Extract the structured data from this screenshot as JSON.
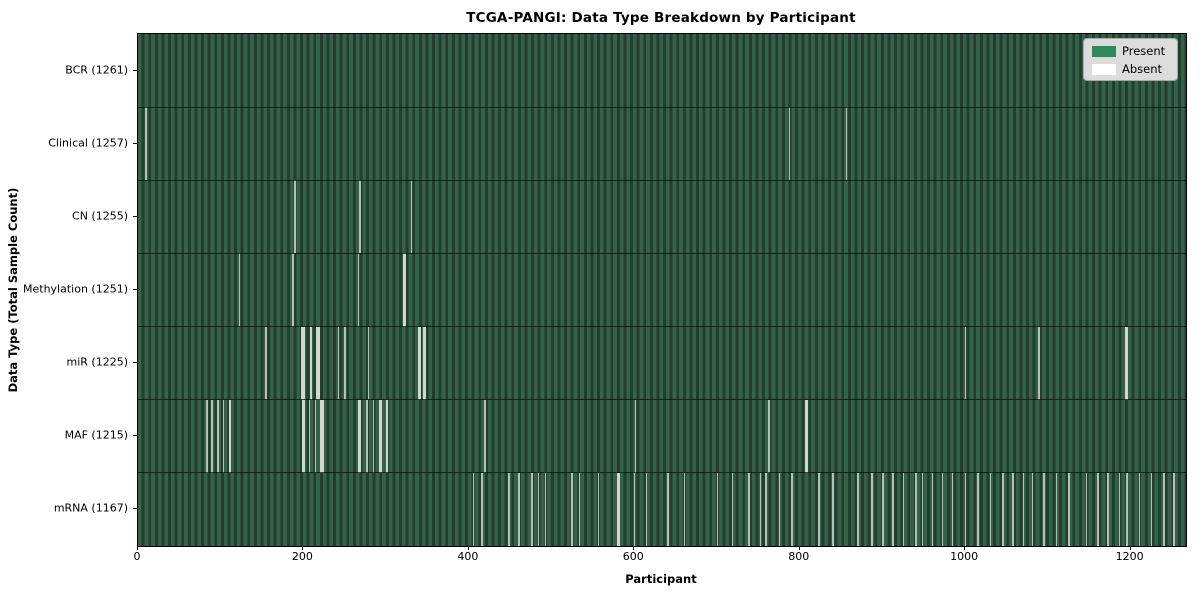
{
  "figure": {
    "title": "TCGA-PANGI: Data Type Breakdown by Participant",
    "xlabel": "Participant",
    "ylabel": "Data Type (Total Sample Count)"
  },
  "legend": {
    "position": "upper right",
    "items": [
      {
        "name": "present",
        "label": "Present",
        "color": "#2e8b57"
      },
      {
        "name": "absent",
        "label": "Absent",
        "color": "#ffffff"
      }
    ]
  },
  "chart_data": {
    "type": "heatmap",
    "title": "TCGA-PANGI: Data Type Breakdown by Participant",
    "xlabel": "Participant",
    "ylabel": "Data Type (Total Sample Count)",
    "grid": false,
    "legend_position": "upper right",
    "x_ticks": [
      0,
      200,
      400,
      600,
      800,
      1000,
      1200
    ],
    "xlim": [
      0,
      1267
    ],
    "colors": {
      "present": "#2e8b57",
      "absent": "#ffffff",
      "bar_stripe_light": "#35604a",
      "bar_stripe_dark": "#213e2e",
      "absent_line": "#b7bfb9",
      "absent_line_bright": "#d0d6d0"
    },
    "rows": [
      {
        "data_type": "BCR",
        "total_samples": 1261,
        "label": "BCR (1261)",
        "absent_ranges": []
      },
      {
        "data_type": "Clinical",
        "total_samples": 1257,
        "label": "Clinical (1257)",
        "absent_ranges": [
          [
            9,
            10
          ],
          [
            787,
            787
          ],
          [
            856,
            856
          ]
        ]
      },
      {
        "data_type": "CN",
        "total_samples": 1255,
        "label": "CN (1255)",
        "absent_ranges": [
          [
            189,
            190
          ],
          [
            268,
            269
          ],
          [
            330,
            331
          ]
        ]
      },
      {
        "data_type": "Methylation",
        "total_samples": 1251,
        "label": "Methylation (1251)",
        "absent_ranges": [
          [
            122,
            123
          ],
          [
            187,
            188
          ],
          [
            266,
            267
          ],
          [
            321,
            323
          ]
        ]
      },
      {
        "data_type": "miR",
        "total_samples": 1225,
        "label": "miR (1225)",
        "absent_ranges": [
          [
            154,
            155
          ],
          [
            198,
            201
          ],
          [
            208,
            210
          ],
          [
            216,
            220
          ],
          [
            242,
            243
          ],
          [
            250,
            251
          ],
          [
            278,
            279
          ],
          [
            339,
            341
          ],
          [
            345,
            347
          ],
          [
            1000,
            1001
          ],
          [
            1089,
            1090
          ],
          [
            1194,
            1196
          ]
        ]
      },
      {
        "data_type": "MAF",
        "total_samples": 1215,
        "label": "MAF (1215)",
        "absent_ranges": [
          [
            83,
            84
          ],
          [
            89,
            90
          ],
          [
            96,
            97
          ],
          [
            103,
            104
          ],
          [
            110,
            112
          ],
          [
            199,
            201
          ],
          [
            207,
            208
          ],
          [
            214,
            215
          ],
          [
            221,
            224
          ],
          [
            267,
            269
          ],
          [
            276,
            277
          ],
          [
            284,
            285
          ],
          [
            292,
            294
          ],
          [
            300,
            302
          ],
          [
            419,
            420
          ],
          [
            601,
            602
          ],
          [
            762,
            763
          ],
          [
            807,
            809
          ]
        ]
      },
      {
        "data_type": "mRNA",
        "total_samples": 1167,
        "label": "mRNA (1167)",
        "absent_ranges": [
          [
            405,
            406
          ],
          [
            415,
            416
          ],
          [
            448,
            449
          ],
          [
            460,
            460
          ],
          [
            476,
            477
          ],
          [
            484,
            484
          ],
          [
            492,
            493
          ],
          [
            524,
            525
          ],
          [
            533,
            534
          ],
          [
            556,
            556
          ],
          [
            580,
            582
          ],
          [
            600,
            600
          ],
          [
            614,
            615
          ],
          [
            640,
            640
          ],
          [
            660,
            660
          ],
          [
            700,
            700
          ],
          [
            718,
            719
          ],
          [
            738,
            739
          ],
          [
            752,
            752
          ],
          [
            759,
            760
          ],
          [
            775,
            775
          ],
          [
            790,
            790
          ],
          [
            823,
            824
          ],
          [
            840,
            840
          ],
          [
            870,
            870
          ],
          [
            887,
            887
          ],
          [
            900,
            901
          ],
          [
            912,
            913
          ],
          [
            925,
            925
          ],
          [
            940,
            940
          ],
          [
            948,
            949
          ],
          [
            960,
            960
          ],
          [
            972,
            972
          ],
          [
            984,
            985
          ],
          [
            1000,
            1001
          ],
          [
            1015,
            1015
          ],
          [
            1030,
            1030
          ],
          [
            1045,
            1045
          ],
          [
            1057,
            1058
          ],
          [
            1070,
            1070
          ],
          [
            1081,
            1082
          ],
          [
            1095,
            1095
          ],
          [
            1110,
            1110
          ],
          [
            1125,
            1125
          ],
          [
            1146,
            1147
          ],
          [
            1160,
            1160
          ],
          [
            1172,
            1172
          ],
          [
            1186,
            1187
          ],
          [
            1195,
            1196
          ],
          [
            1210,
            1210
          ],
          [
            1225,
            1225
          ],
          [
            1240,
            1240
          ],
          [
            1252,
            1252
          ]
        ]
      }
    ]
  }
}
